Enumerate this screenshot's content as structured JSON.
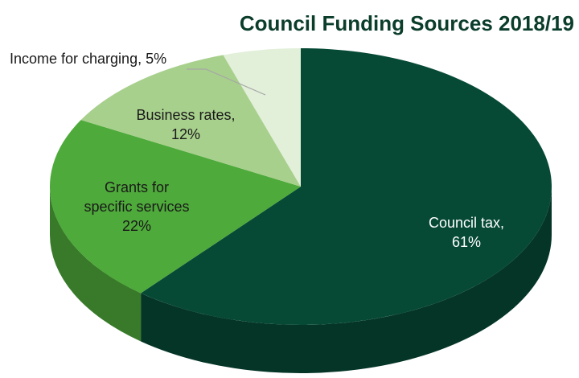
{
  "chart_data": {
    "type": "pie",
    "title": "Council Funding Sources 2018/19",
    "slices": [
      {
        "name": "Council tax",
        "value": 61,
        "label_lines": [
          "Council tax,",
          "61%"
        ],
        "color": "#064a36",
        "text_color": "#ffffff"
      },
      {
        "name": "Grants for specific services",
        "value": 22,
        "label_lines": [
          "Grants for",
          "specific services",
          "22%"
        ],
        "color": "#4eaa3a",
        "text_color": "#1a1a1a"
      },
      {
        "name": "Business rates",
        "value": 12,
        "label_lines": [
          "Business rates,",
          "12%"
        ],
        "color": "#a8d08d",
        "text_color": "#1a1a1a"
      },
      {
        "name": "Income for charging",
        "value": 5,
        "label_lines": [
          "Income for charging, 5%"
        ],
        "color": "#e2efd9",
        "text_color": "#1a1a1a"
      }
    ],
    "start": "12 o'clock",
    "direction": "clockwise",
    "style": "3d tilted"
  }
}
